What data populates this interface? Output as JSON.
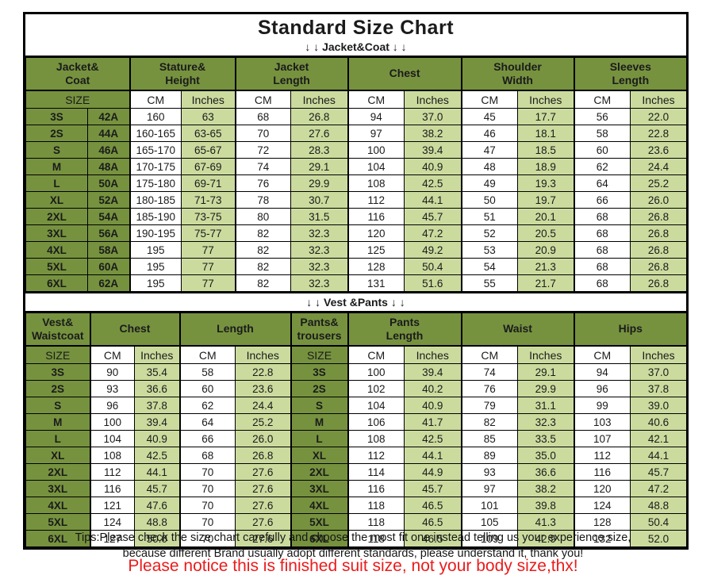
{
  "page": {
    "title": "Standard Size Chart",
    "jacket_divider": "↓ ↓  Jacket&Coat ↓ ↓",
    "vest_divider": "↓ ↓  Vest &Pants ↓ ↓",
    "tips_line1": "Tips:Please check the size chart carefully and choose the most fit one instead telling us your experience size,",
    "tips_line2": "because different Brand usually adopt different standards, please understand it, thank you!",
    "notice_red": "Please notice this is finished suit size, not your body size,thx!"
  },
  "colors": {
    "header_green": "#76923F",
    "light_green": "#CBDB9E",
    "cell_white": "#FFFFFF",
    "notice_red": "#EA1C1C",
    "border_black": "#000000"
  },
  "jacket_table": {
    "groups": [
      {
        "label": "Jacket&\nCoat",
        "span": 2
      },
      {
        "label": "Stature&\nHeight",
        "span": 2
      },
      {
        "label": "Jacket\nLength",
        "span": 2
      },
      {
        "label": "Chest",
        "span": 2
      },
      {
        "label": "Shoulder\nWidth",
        "span": 2
      },
      {
        "label": "Sleeves\nLength",
        "span": 2
      }
    ],
    "subheader": [
      "SIZE",
      "CM",
      "Inches",
      "CM",
      "Inches",
      "CM",
      "Inches",
      "CM",
      "Inches",
      "CM",
      "Inches"
    ],
    "rows": [
      [
        "3S",
        "42A",
        "160",
        "63",
        "68",
        "26.8",
        "94",
        "37.0",
        "45",
        "17.7",
        "56",
        "22.0"
      ],
      [
        "2S",
        "44A",
        "160-165",
        "63-65",
        "70",
        "27.6",
        "97",
        "38.2",
        "46",
        "18.1",
        "58",
        "22.8"
      ],
      [
        "S",
        "46A",
        "165-170",
        "65-67",
        "72",
        "28.3",
        "100",
        "39.4",
        "47",
        "18.5",
        "60",
        "23.6"
      ],
      [
        "M",
        "48A",
        "170-175",
        "67-69",
        "74",
        "29.1",
        "104",
        "40.9",
        "48",
        "18.9",
        "62",
        "24.4"
      ],
      [
        "L",
        "50A",
        "175-180",
        "69-71",
        "76",
        "29.9",
        "108",
        "42.5",
        "49",
        "19.3",
        "64",
        "25.2"
      ],
      [
        "XL",
        "52A",
        "180-185",
        "71-73",
        "78",
        "30.7",
        "112",
        "44.1",
        "50",
        "19.7",
        "66",
        "26.0"
      ],
      [
        "2XL",
        "54A",
        "185-190",
        "73-75",
        "80",
        "31.5",
        "116",
        "45.7",
        "51",
        "20.1",
        "68",
        "26.8"
      ],
      [
        "3XL",
        "56A",
        "190-195",
        "75-77",
        "82",
        "32.3",
        "120",
        "47.2",
        "52",
        "20.5",
        "68",
        "26.8"
      ],
      [
        "4XL",
        "58A",
        "195",
        "77",
        "82",
        "32.3",
        "125",
        "49.2",
        "53",
        "20.9",
        "68",
        "26.8"
      ],
      [
        "5XL",
        "60A",
        "195",
        "77",
        "82",
        "32.3",
        "128",
        "50.4",
        "54",
        "21.3",
        "68",
        "26.8"
      ],
      [
        "6XL",
        "62A",
        "195",
        "77",
        "82",
        "32.3",
        "131",
        "51.6",
        "55",
        "21.7",
        "68",
        "26.8"
      ]
    ]
  },
  "vest_table": {
    "groups": [
      {
        "label": "Vest&\nWaistcoat",
        "span": 1
      },
      {
        "label": "Chest",
        "span": 2
      },
      {
        "label": "Length",
        "span": 2
      },
      {
        "label": "Pants&\ntrousers",
        "span": 1
      },
      {
        "label": "Pants\nLength",
        "span": 2
      },
      {
        "label": "Waist",
        "span": 2
      },
      {
        "label": "Hips",
        "span": 2
      }
    ],
    "subheader": [
      "SIZE",
      "CM",
      "Inches",
      "CM",
      "Inches",
      "SIZE",
      "CM",
      "Inches",
      "CM",
      "Inches",
      "CM",
      "Inches"
    ],
    "rows": [
      [
        "3S",
        "90",
        "35.4",
        "58",
        "22.8",
        "3S",
        "100",
        "39.4",
        "74",
        "29.1",
        "94",
        "37.0"
      ],
      [
        "2S",
        "93",
        "36.6",
        "60",
        "23.6",
        "2S",
        "102",
        "40.2",
        "76",
        "29.9",
        "96",
        "37.8"
      ],
      [
        "S",
        "96",
        "37.8",
        "62",
        "24.4",
        "S",
        "104",
        "40.9",
        "79",
        "31.1",
        "99",
        "39.0"
      ],
      [
        "M",
        "100",
        "39.4",
        "64",
        "25.2",
        "M",
        "106",
        "41.7",
        "82",
        "32.3",
        "103",
        "40.6"
      ],
      [
        "L",
        "104",
        "40.9",
        "66",
        "26.0",
        "L",
        "108",
        "42.5",
        "85",
        "33.5",
        "107",
        "42.1"
      ],
      [
        "XL",
        "108",
        "42.5",
        "68",
        "26.8",
        "XL",
        "112",
        "44.1",
        "89",
        "35.0",
        "112",
        "44.1"
      ],
      [
        "2XL",
        "112",
        "44.1",
        "70",
        "27.6",
        "2XL",
        "114",
        "44.9",
        "93",
        "36.6",
        "116",
        "45.7"
      ],
      [
        "3XL",
        "116",
        "45.7",
        "70",
        "27.6",
        "3XL",
        "116",
        "45.7",
        "97",
        "38.2",
        "120",
        "47.2"
      ],
      [
        "4XL",
        "121",
        "47.6",
        "70",
        "27.6",
        "4XL",
        "118",
        "46.5",
        "101",
        "39.8",
        "124",
        "48.8"
      ],
      [
        "5XL",
        "124",
        "48.8",
        "70",
        "27.6",
        "5XL",
        "118",
        "46.5",
        "105",
        "41.3",
        "128",
        "50.4"
      ],
      [
        "6XL",
        "127",
        "50.0",
        "70",
        "27.6",
        "6XL",
        "118",
        "46.5",
        "109",
        "42.9",
        "132",
        "52.0"
      ]
    ]
  }
}
